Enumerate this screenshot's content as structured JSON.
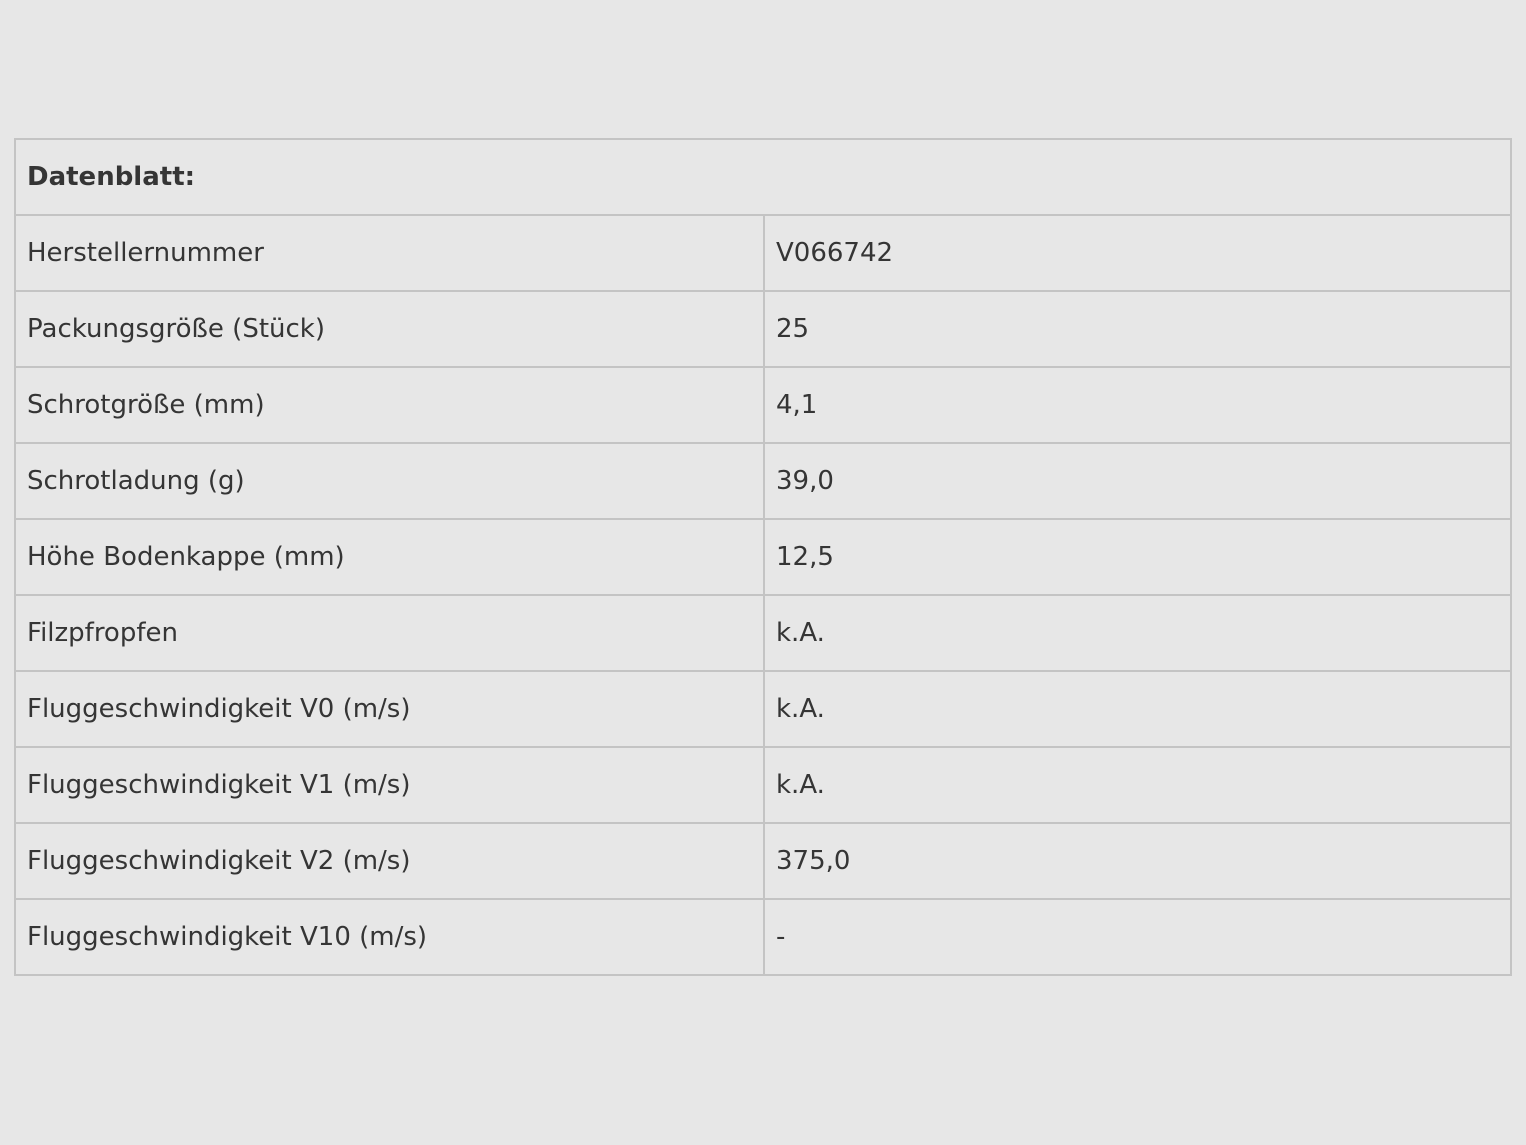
{
  "table": {
    "title": "Datenblatt:",
    "rows": [
      {
        "label": "Herstellernummer",
        "value": "V066742"
      },
      {
        "label": "Packungsgröße (Stück)",
        "value": "25"
      },
      {
        "label": "Schrotgröße (mm)",
        "value": "4,1"
      },
      {
        "label": "Schrotladung (g)",
        "value": "39,0"
      },
      {
        "label": "Höhe Bodenkappe (mm)",
        "value": "12,5"
      },
      {
        "label": "Filzpfropfen",
        "value": "k.A."
      },
      {
        "label": "Fluggeschwindigkeit V0 (m/s)",
        "value": "k.A."
      },
      {
        "label": "Fluggeschwindigkeit V1 (m/s)",
        "value": "k.A."
      },
      {
        "label": "Fluggeschwindigkeit V2 (m/s)",
        "value": "375,0"
      },
      {
        "label": "Fluggeschwindigkeit V10 (m/s)",
        "value": "-"
      }
    ]
  }
}
